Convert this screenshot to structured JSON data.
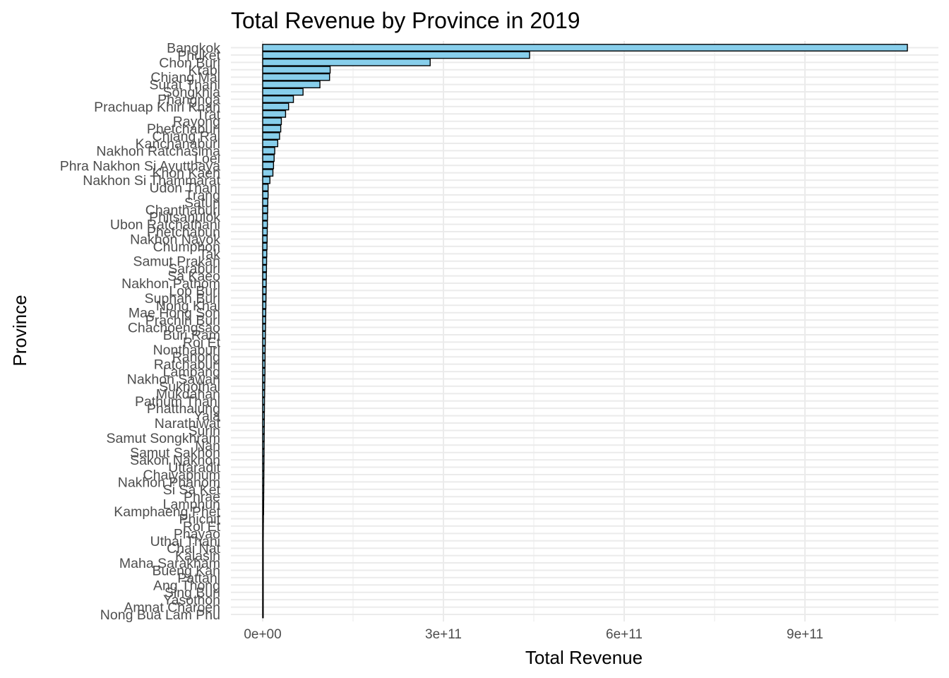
{
  "chart_data": {
    "type": "bar",
    "orientation": "horizontal",
    "title": "Total Revenue by Province in 2019",
    "xlabel": "Total Revenue",
    "ylabel": "Province",
    "xlim": [
      -40000000000.0,
      1100000000000.0
    ],
    "x_ticks": [
      {
        "value": 0,
        "label": "0e+00"
      },
      {
        "value": 300000000000,
        "label": "3e+11"
      },
      {
        "value": 600000000000,
        "label": "6e+11"
      },
      {
        "value": 900000000000,
        "label": "9e+11"
      }
    ],
    "grid": true,
    "legend": "none",
    "bar_color": "#87CEEB",
    "bar_edge_color": "#000000",
    "categories": [
      "Bangkok",
      "Phuket",
      "Chon Buri",
      "Krabi",
      "Chiang Mai",
      "Surat Thani",
      "Songkhla",
      "Phangnga",
      "Prachuap Khiri Khan",
      "Trat",
      "Rayong",
      "Phetchaburi",
      "Chiang Rai",
      "Kanchanaburi",
      "Nakhon Ratchasima",
      "Loei",
      "Phra Nakhon Si Ayutthaya",
      "Khon Kaen",
      "Nakhon Si Thammarat",
      "Udon Thani",
      "Trang",
      "Satun",
      "Chanthaburi",
      "Phitsanulok",
      "Ubon Ratchathani",
      "Phetchabun",
      "Nakhon Nayok",
      "Chumphon",
      "Tak",
      "Samut Prakan",
      "Saraburi",
      "Sa Kaeo",
      "Nakhon Pathom",
      "Lop Buri",
      "Suphan Buri",
      "Nong Khai",
      "Mae Hong Son",
      "Prachin Buri",
      "Chachoengsao",
      "Buri Ram",
      "Roi Et",
      "Nonthaburi",
      "Ranong",
      "Ratchaburi",
      "Lampang",
      "Nakhon Sawan",
      "Sukhothai",
      "Mukdahan",
      "Pathum Thani",
      "Phatthalung",
      "Yala",
      "Narathiwat",
      "Surin",
      "Samut Songkhram",
      "Nan",
      "Samut Sakhon",
      "Sakon Nakhon",
      "Uttaradit",
      "Chaiyaphum",
      "Nakhon Phanom",
      "Si Sa Ket",
      "Phrae",
      "Lamphun",
      "Kamphaeng Phet",
      "Phichit",
      "Roi Et",
      "Phayao",
      "Uthai Thani",
      "Chai Nat",
      "Kalasin",
      "Maha Sarakham",
      "Bueng Kan",
      "Pattani",
      "Ang Thong",
      "Sing Buri",
      "Yasothon",
      "Amnat Charoen",
      "Nong Bua Lam Phu"
    ],
    "values": [
      1070000000000,
      443000000000,
      278000000000,
      112000000000,
      111000000000,
      95000000000,
      67000000000,
      51000000000,
      43000000000,
      38000000000,
      31000000000,
      30000000000,
      28000000000,
      25000000000,
      20000000000,
      19000000000,
      18000000000,
      17000000000,
      12000000000,
      9000000000,
      9000000000,
      8500000000,
      8300000000,
      8000000000,
      7800000000,
      7600000000,
      7400000000,
      7200000000,
      6800000000,
      6500000000,
      6300000000,
      6100000000,
      5900000000,
      5700000000,
      5500000000,
      5300000000,
      5100000000,
      4900000000,
      4700000000,
      4500000000,
      4300000000,
      4100000000,
      4000000000,
      3900000000,
      3800000000,
      3600000000,
      3400000000,
      3200000000,
      3000000000,
      2900000000,
      2800000000,
      2700000000,
      2600000000,
      2500000000,
      2400000000,
      2300000000,
      2200000000,
      2100000000,
      2000000000,
      1900000000,
      1800000000,
      1700000000,
      1600000000,
      1500000000,
      1200000000,
      1100000000,
      1000000000,
      900000000,
      800000000,
      700000000,
      650000000,
      600000000,
      550000000,
      500000000,
      450000000,
      400000000,
      350000000,
      300000000
    ]
  }
}
